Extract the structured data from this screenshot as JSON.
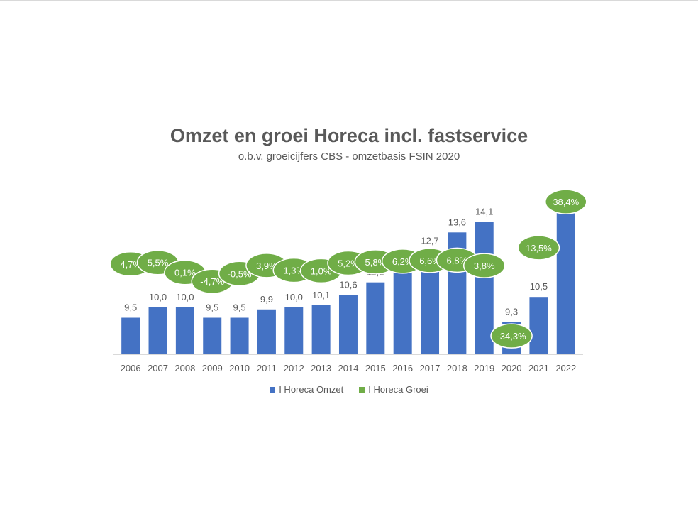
{
  "colors": {
    "omzet": "#4472c4",
    "groei": "#70ad47",
    "text": "#595959"
  },
  "chart_data": {
    "type": "bar",
    "title": "Omzet en groei Horeca incl. fastservice",
    "subtitle": "o.b.v. groeicijfers CBS - omzetbasis FSIN 2020",
    "categories": [
      "2006",
      "2007",
      "2008",
      "2009",
      "2010",
      "2011",
      "2012",
      "2013",
      "2014",
      "2015",
      "2016",
      "2017",
      "2018",
      "2019",
      "2020",
      "2021",
      "2022"
    ],
    "series": [
      {
        "name": "I Horeca  Omzet",
        "type": "bar",
        "values": [
          9.5,
          10.0,
          10.0,
          9.5,
          9.5,
          9.9,
          10.0,
          10.1,
          10.6,
          11.2,
          11.9,
          12.7,
          13.6,
          14.1,
          9.3,
          10.5,
          14.6
        ],
        "labels": [
          "9,5",
          "10,0",
          "10,0",
          "9,5",
          "9,5",
          "9,9",
          "10,0",
          "10,1",
          "10,6",
          "11,2",
          "11,9",
          "12,7",
          "13,6",
          "14,1",
          "9,3",
          "10,5",
          "14,6"
        ]
      },
      {
        "name": "I Horeca Groei",
        "type": "line-markers",
        "values": [
          4.7,
          5.5,
          0.1,
          -4.7,
          -0.5,
          3.9,
          1.3,
          1.0,
          5.2,
          5.8,
          6.2,
          6.6,
          6.8,
          3.8,
          -34.3,
          13.5,
          38.4
        ],
        "labels": [
          "4,7%",
          "5,5%",
          "0,1%",
          "-4,7%",
          "-0,5%",
          "3,9%",
          "1,3%",
          "1,0%",
          "5,2%",
          "5,8%",
          "6,2%",
          "6,6%",
          "6,8%",
          "3,8%",
          "-34,3%",
          "13,5%",
          "38,4%"
        ]
      }
    ],
    "legend_position": "bottom",
    "grid": false
  }
}
